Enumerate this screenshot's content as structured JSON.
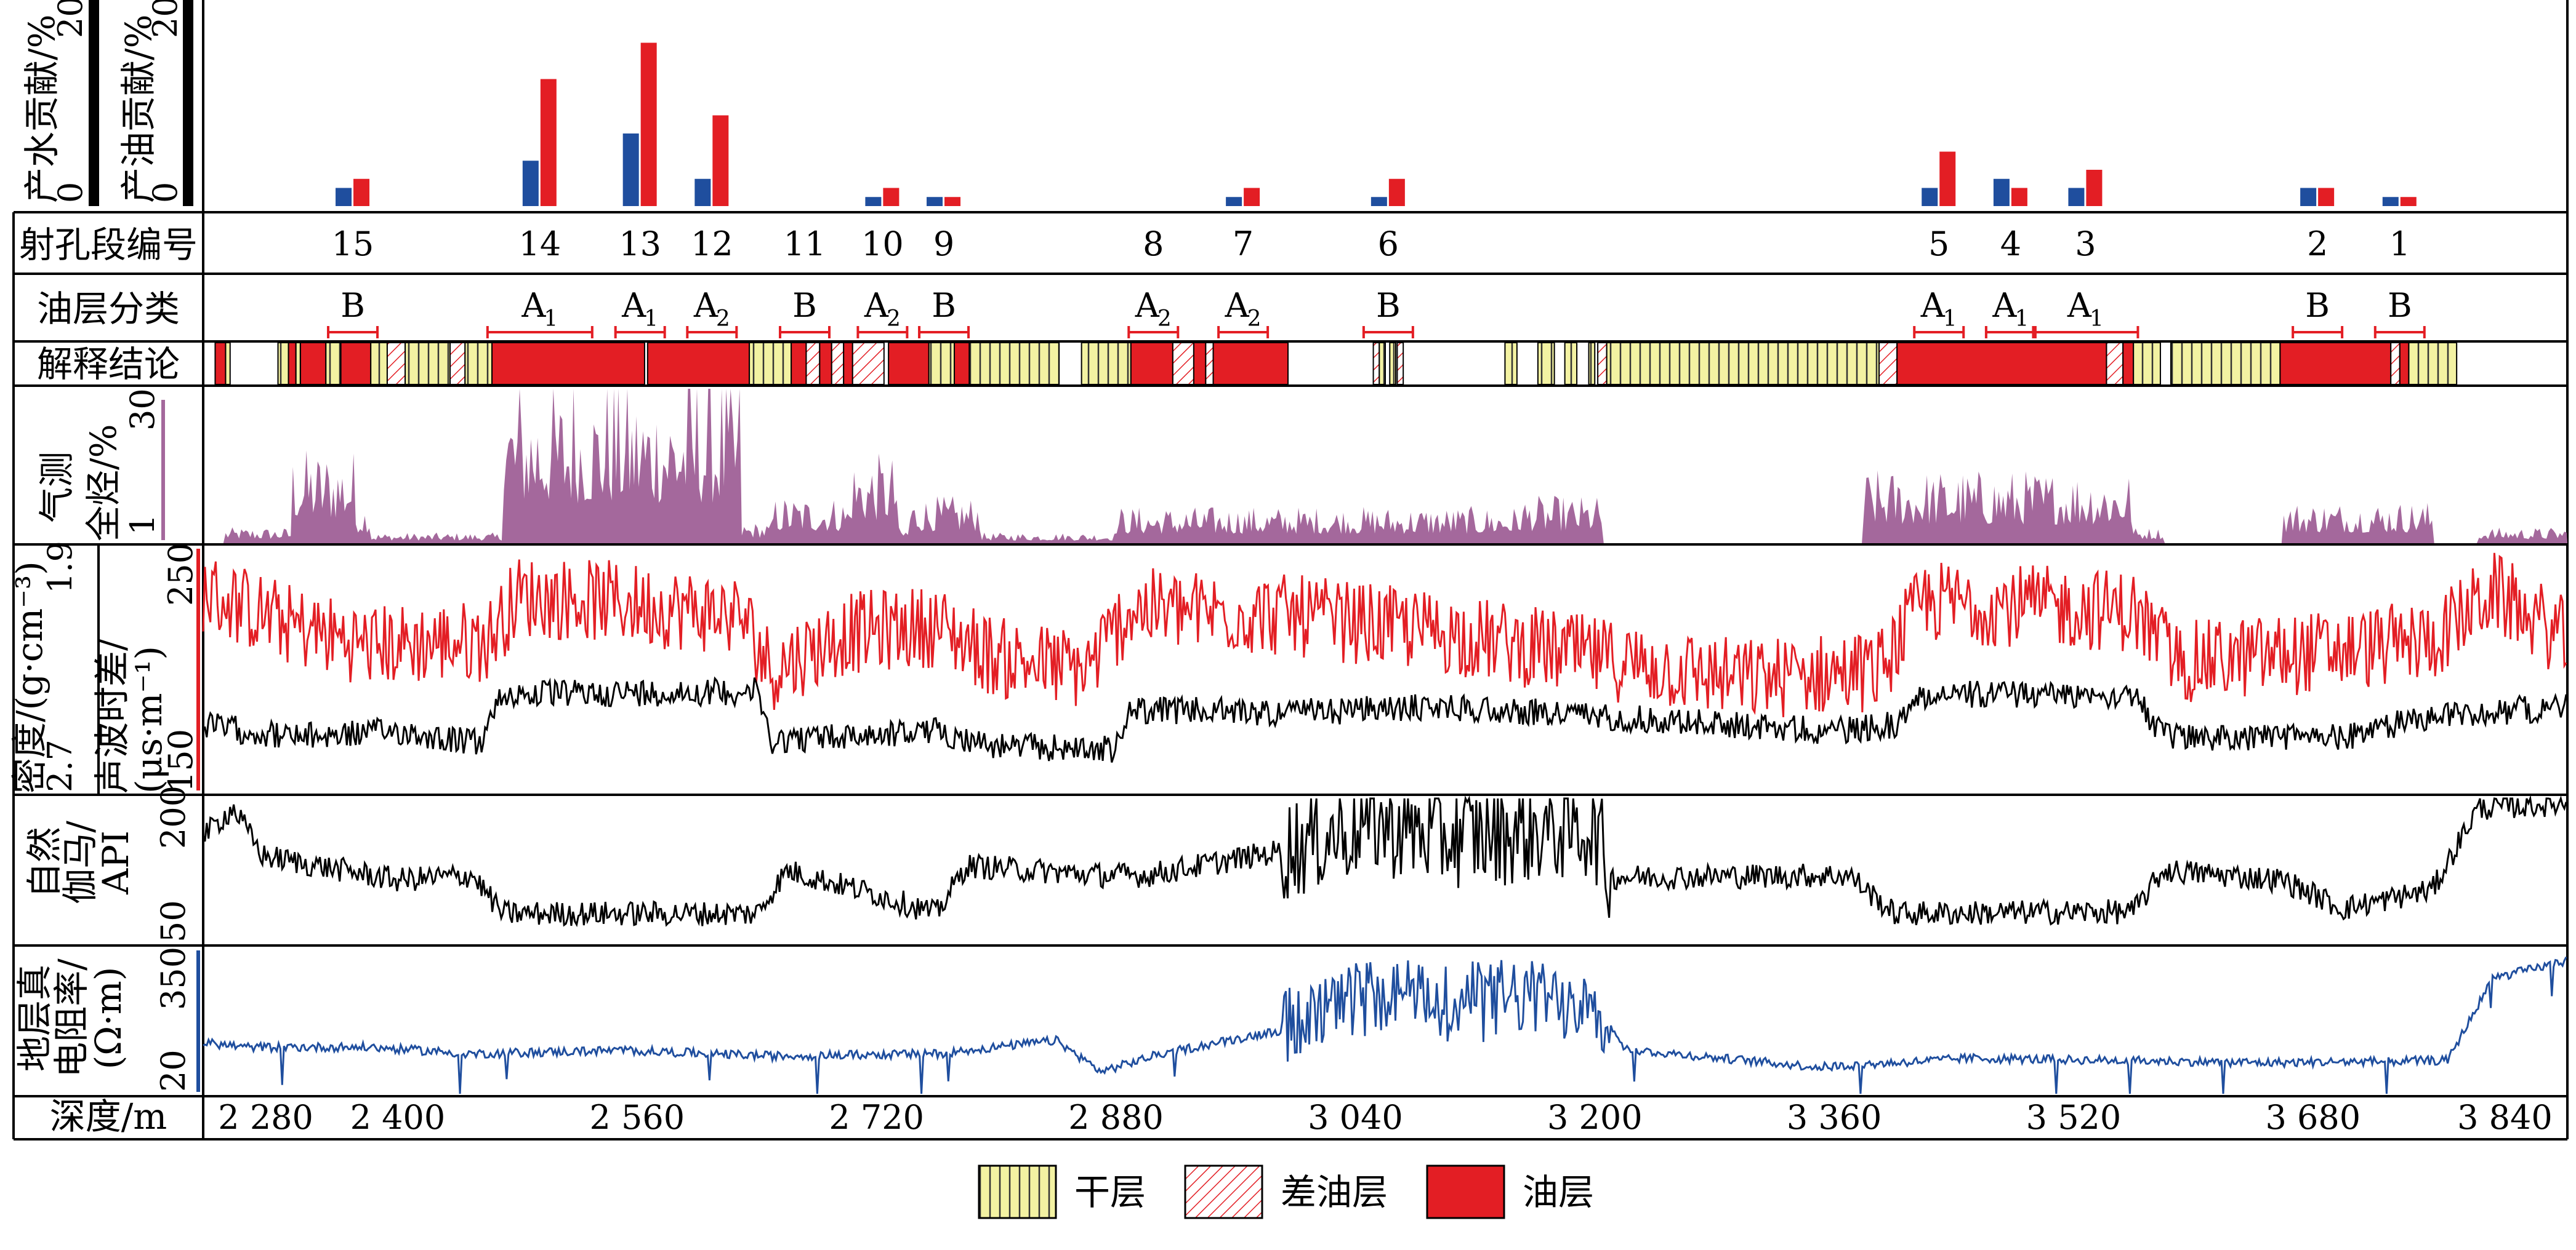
{
  "labels": {
    "water_contribution": "产水贡献/%",
    "oil_contribution": "产油贡献/%",
    "perf_id": "射孔段编号",
    "oil_class": "油层分类",
    "interpretation": "解释结论",
    "gas_total": [
      "气测",
      "全烃/%"
    ],
    "density": "密度/(g·cm⁻³)",
    "sonic": [
      "声波时差/",
      "(μs·m⁻¹)"
    ],
    "gamma": [
      "自然",
      "伽马/",
      "API"
    ],
    "resistivity": [
      "地层真",
      "电阻率/",
      "(Ω·m)"
    ],
    "depth": "深度/m"
  },
  "legend": {
    "dry": "干层",
    "poor_oil": "差油层",
    "oil": "油层"
  },
  "colors": {
    "water": "#1f4e9e",
    "oil": "#e31e24",
    "dry": "#f3f2a2",
    "gas": "#a4689c",
    "resistivity": "#1f4e9e",
    "sonic": "#e31e24",
    "density": "#000000"
  },
  "chart_data": {
    "type": "log-profile",
    "x_axis": {
      "label": "深度/m",
      "range": [
        2270,
        3850
      ],
      "ticks": [
        "2 280",
        "2 400",
        "2 560",
        "2 720",
        "2 880",
        "3 040",
        "3 200",
        "3 360",
        "3 520",
        "3 680",
        "3 840"
      ],
      "tick_values": [
        2280,
        2400,
        2560,
        2720,
        2880,
        3040,
        3200,
        3360,
        3520,
        3680,
        3840
      ]
    },
    "contribution_ylim": [
      0,
      20
    ],
    "contribution_ticks": {
      "water": [
        "0",
        "20"
      ],
      "oil": [
        "0",
        "20"
      ]
    },
    "perforations": [
      {
        "id": "15",
        "depth": 2370,
        "water": 2,
        "oil": 3,
        "class": "B",
        "sub": ""
      },
      {
        "id": "14",
        "depth": 2495,
        "water": 5,
        "oil": 14,
        "class": "A",
        "sub": "1"
      },
      {
        "id": "13",
        "depth": 2562,
        "water": 8,
        "oil": 18,
        "class": "A",
        "sub": "1"
      },
      {
        "id": "12",
        "depth": 2610,
        "water": 3,
        "oil": 10,
        "class": "A",
        "sub": "2"
      },
      {
        "id": "11",
        "depth": 2672,
        "water": 0,
        "oil": 0,
        "class": "B",
        "sub": ""
      },
      {
        "id": "10",
        "depth": 2724,
        "water": 1,
        "oil": 2,
        "class": "A",
        "sub": "2"
      },
      {
        "id": "9",
        "depth": 2765,
        "water": 1,
        "oil": 1,
        "class": "B",
        "sub": ""
      },
      {
        "id": "8",
        "depth": 2905,
        "water": 0,
        "oil": 0,
        "class": "A",
        "sub": "2"
      },
      {
        "id": "7",
        "depth": 2965,
        "water": 1,
        "oil": 2,
        "class": "A",
        "sub": "2"
      },
      {
        "id": "6",
        "depth": 3062,
        "water": 1,
        "oil": 3,
        "class": "B",
        "sub": ""
      },
      {
        "id": "5",
        "depth": 3430,
        "water": 2,
        "oil": 6,
        "class": "A",
        "sub": "1"
      },
      {
        "id": "4",
        "depth": 3478,
        "water": 3,
        "oil": 2,
        "class": "A",
        "sub": "1"
      },
      {
        "id": "3",
        "depth": 3528,
        "water": 2,
        "oil": 4,
        "class": "A",
        "sub": "1"
      },
      {
        "id": "2",
        "depth": 3683,
        "water": 2,
        "oil": 2,
        "class": "B",
        "sub": ""
      },
      {
        "id": "1",
        "depth": 3738,
        "water": 1,
        "oil": 1,
        "class": "B",
        "sub": ""
      }
    ],
    "interpretation_layers": [
      [
        "oil",
        2278,
        2285
      ],
      [
        "dry",
        2285,
        2288
      ],
      [
        "dry",
        2320,
        2327
      ],
      [
        "oil",
        2327,
        2332
      ],
      [
        "dry",
        2332,
        2335
      ],
      [
        "oil",
        2335,
        2352
      ],
      [
        "dry",
        2352,
        2362
      ],
      [
        "oil",
        2362,
        2382
      ],
      [
        "dry",
        2382,
        2393
      ],
      [
        "poor",
        2393,
        2405
      ],
      [
        "dry",
        2405,
        2435
      ],
      [
        "poor",
        2435,
        2445
      ],
      [
        "dry",
        2445,
        2463
      ],
      [
        "oil",
        2463,
        2565
      ],
      [
        "oil",
        2567,
        2635
      ],
      [
        "dry",
        2635,
        2663
      ],
      [
        "oil",
        2663,
        2673
      ],
      [
        "poor",
        2673,
        2682
      ],
      [
        "oil",
        2682,
        2690
      ],
      [
        "poor",
        2690,
        2698
      ],
      [
        "oil",
        2698,
        2704
      ],
      [
        "poor",
        2704,
        2725
      ],
      [
        "oil",
        2728,
        2755
      ],
      [
        "dry",
        2755,
        2772
      ],
      [
        "oil",
        2772,
        2782
      ],
      [
        "dry",
        2782,
        2842
      ],
      [
        "dry",
        2857,
        2890
      ],
      [
        "oil",
        2890,
        2918
      ],
      [
        "poor",
        2918,
        2932
      ],
      [
        "oil",
        2932,
        2940
      ],
      [
        "poor",
        2940,
        2945
      ],
      [
        "oil",
        2945,
        2995
      ],
      [
        "poor",
        3052,
        3056
      ],
      [
        "dry",
        3056,
        3060
      ],
      [
        "dry",
        3063,
        3067
      ],
      [
        "poor",
        3068,
        3072
      ],
      [
        "dry",
        3140,
        3148
      ],
      [
        "dry",
        3162,
        3173
      ],
      [
        "dry",
        3180,
        3188
      ],
      [
        "dry",
        3196,
        3200
      ],
      [
        "poor",
        3202,
        3208
      ],
      [
        "dry",
        3208,
        3390
      ],
      [
        "poor",
        3390,
        3402
      ],
      [
        "oil",
        3402,
        3542
      ],
      [
        "poor",
        3542,
        3553
      ],
      [
        "oil",
        3553,
        3560
      ],
      [
        "dry",
        3560,
        3578
      ],
      [
        "dry",
        3585,
        3658
      ],
      [
        "oil",
        3658,
        3732
      ],
      [
        "poor",
        3732,
        3738
      ],
      [
        "oil",
        3738,
        3744
      ],
      [
        "dry",
        3744,
        3776
      ]
    ],
    "gas_ticks": [
      "1",
      "30"
    ],
    "gas_ylim": [
      1,
      30
    ],
    "gas_zones": [
      [
        2285,
        2330,
        3
      ],
      [
        2330,
        2372,
        18
      ],
      [
        2372,
        2382,
        8
      ],
      [
        2382,
        2470,
        2
      ],
      [
        2470,
        2630,
        30
      ],
      [
        2630,
        2650,
        4
      ],
      [
        2650,
        2703,
        9
      ],
      [
        2703,
        2735,
        17
      ],
      [
        2735,
        2742,
        3
      ],
      [
        2742,
        2790,
        9
      ],
      [
        2790,
        2880,
        2
      ],
      [
        2880,
        3150,
        7
      ],
      [
        3150,
        3205,
        9
      ],
      [
        3380,
        3560,
        14
      ],
      [
        3560,
        3580,
        3
      ],
      [
        3660,
        3760,
        8
      ],
      [
        3790,
        3850,
        3
      ]
    ],
    "density_ticks": [
      "2.7",
      "1.9"
    ],
    "density_ylim": [
      2.7,
      1.9
    ],
    "sonic_ticks": [
      "150",
      "250"
    ],
    "sonic_ylim": [
      150,
      250
    ],
    "sonic_levels": [
      [
        2270,
        232
      ],
      [
        2330,
        218
      ],
      [
        2380,
        210
      ],
      [
        2460,
        212
      ],
      [
        2480,
        230
      ],
      [
        2540,
        228
      ],
      [
        2630,
        222
      ],
      [
        2650,
        200
      ],
      [
        2700,
        215
      ],
      [
        2760,
        218
      ],
      [
        2800,
        205
      ],
      [
        2860,
        200
      ],
      [
        2890,
        225
      ],
      [
        3000,
        222
      ],
      [
        3100,
        215
      ],
      [
        3200,
        205
      ],
      [
        3300,
        196
      ],
      [
        3390,
        200
      ],
      [
        3420,
        228
      ],
      [
        3560,
        224
      ],
      [
        3590,
        203
      ],
      [
        3700,
        208
      ],
      [
        3760,
        212
      ],
      [
        3800,
        232
      ],
      [
        3850,
        212
      ]
    ],
    "density_levels": [
      [
        2270,
        2.48
      ],
      [
        2330,
        2.52
      ],
      [
        2400,
        2.5
      ],
      [
        2455,
        2.54
      ],
      [
        2470,
        2.38
      ],
      [
        2640,
        2.37
      ],
      [
        2650,
        2.53
      ],
      [
        2760,
        2.5
      ],
      [
        2800,
        2.55
      ],
      [
        2880,
        2.56
      ],
      [
        2890,
        2.43
      ],
      [
        3000,
        2.44
      ],
      [
        3100,
        2.42
      ],
      [
        3200,
        2.45
      ],
      [
        3360,
        2.5
      ],
      [
        3400,
        2.48
      ],
      [
        3420,
        2.38
      ],
      [
        3560,
        2.38
      ],
      [
        3580,
        2.52
      ],
      [
        3700,
        2.52
      ],
      [
        3760,
        2.45
      ],
      [
        3850,
        2.42
      ]
    ],
    "gamma_ticks": [
      "50",
      "200"
    ],
    "gamma_ylim": [
      50,
      200
    ],
    "gamma_levels": [
      [
        2270,
        160
      ],
      [
        2290,
        190
      ],
      [
        2310,
        140
      ],
      [
        2400,
        115
      ],
      [
        2450,
        120
      ],
      [
        2470,
        80
      ],
      [
        2640,
        80
      ],
      [
        2660,
        125
      ],
      [
        2720,
        100
      ],
      [
        2760,
        80
      ],
      [
        2780,
        130
      ],
      [
        2870,
        120
      ],
      [
        2900,
        120
      ],
      [
        2990,
        145
      ],
      [
        3050,
        175
      ],
      [
        3100,
        160
      ],
      [
        3200,
        170
      ],
      [
        3210,
        118
      ],
      [
        3370,
        120
      ],
      [
        3400,
        80
      ],
      [
        3560,
        82
      ],
      [
        3580,
        125
      ],
      [
        3660,
        115
      ],
      [
        3700,
        85
      ],
      [
        3760,
        105
      ],
      [
        3790,
        190
      ],
      [
        3850,
        195
      ]
    ],
    "resistivity_ticks": [
      "20",
      "350"
    ],
    "resistivity_ylim": [
      20,
      350
    ],
    "resistivity_levels": [
      [
        2270,
        135
      ],
      [
        2300,
        125
      ],
      [
        2380,
        125
      ],
      [
        2450,
        110
      ],
      [
        2550,
        118
      ],
      [
        2650,
        105
      ],
      [
        2760,
        110
      ],
      [
        2840,
        140
      ],
      [
        2870,
        70
      ],
      [
        2910,
        110
      ],
      [
        3000,
        170
      ],
      [
        3060,
        250
      ],
      [
        3100,
        230
      ],
      [
        3200,
        240
      ],
      [
        3220,
        120
      ],
      [
        3350,
        80
      ],
      [
        3450,
        100
      ],
      [
        3550,
        95
      ],
      [
        3650,
        90
      ],
      [
        3770,
        95
      ],
      [
        3800,
        280
      ],
      [
        3850,
        320
      ]
    ]
  }
}
